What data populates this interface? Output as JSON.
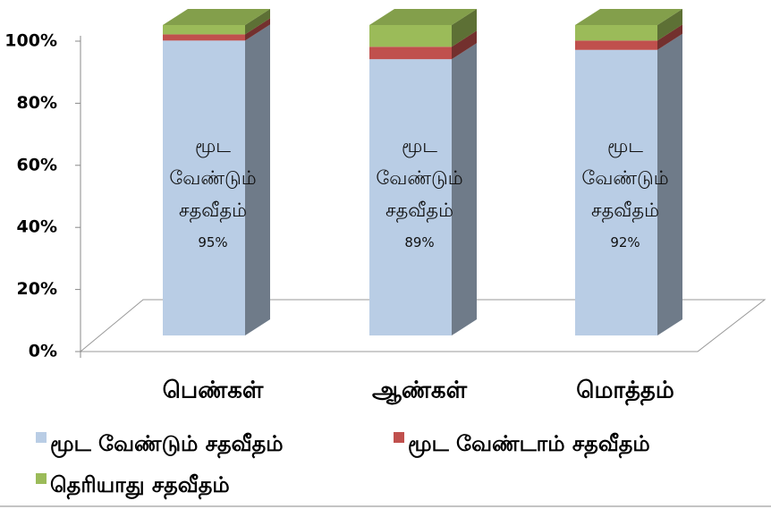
{
  "chart_data": {
    "type": "bar3d_stacked",
    "categories": [
      "பெண்கள்",
      "ஆண்கள்",
      "மொத்தம்"
    ],
    "series": [
      {
        "name": "மூட வேண்டும் சதவீதம்",
        "color": "#b9cde5",
        "values": [
          95,
          89,
          92
        ],
        "value_labels": [
          "95%",
          "89%",
          "92%"
        ]
      },
      {
        "name": "மூட வேண்டாம் சதவீதம்",
        "color": "#c0504d",
        "values": [
          2,
          4,
          3
        ]
      },
      {
        "name": "தெரியாது சதவீதம்",
        "color": "#9bbb59",
        "values": [
          3,
          7,
          5
        ]
      }
    ],
    "ylim": [
      0,
      100
    ],
    "yticks": [
      {
        "value": 0,
        "label": "0%"
      },
      {
        "value": 20,
        "label": "20%"
      },
      {
        "value": 40,
        "label": "40%"
      },
      {
        "value": 60,
        "label": "60%"
      },
      {
        "value": 80,
        "label": "80%"
      },
      {
        "value": 100,
        "label": "100%"
      }
    ]
  }
}
